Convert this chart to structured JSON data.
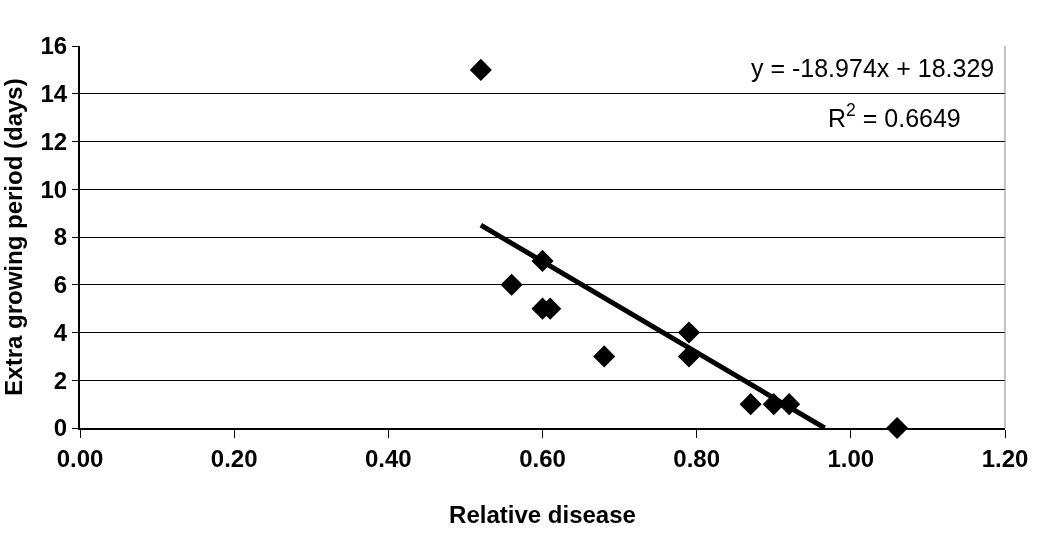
{
  "chart_data": {
    "type": "scatter",
    "xlabel": "Relative disease",
    "ylabel": "Extra growing period (days)",
    "annotations": [
      "y = -18.974x + 18.329",
      "R$^{2}$ = 0.6649"
    ],
    "series": [
      {
        "color": "#000000",
        "marker": "diamond",
        "x": [
          0.52,
          0.56,
          0.6,
          0.6,
          0.61,
          0.68,
          0.79,
          0.79,
          0.87,
          0.9,
          0.92,
          1.06
        ],
        "values": [
          15,
          6,
          7,
          5,
          5,
          3,
          4,
          3,
          1,
          1,
          1,
          0
        ]
      },
      {
        "type": "line",
        "color": "#000000",
        "line_style": "solid",
        "marker": "none",
        "x": [
          0.52,
          0.966
        ],
        "values": [
          8.5,
          0
        ]
      }
    ],
    "xlim": [
      0,
      1.2
    ],
    "xticks": [
      {
        "value": 0,
        "label": "0.00"
      },
      {
        "value": 0.2,
        "label": "0.20"
      },
      {
        "value": 0.4,
        "label": "0.40"
      },
      {
        "value": 0.6,
        "label": "0.60"
      },
      {
        "value": 0.8,
        "label": "0.80"
      },
      {
        "value": 1,
        "label": "1.00"
      },
      {
        "value": 1.2,
        "label": "1.20"
      }
    ],
    "ylim": [
      0,
      16
    ],
    "yticks": [
      0,
      2,
      4,
      6,
      8,
      10,
      12,
      14,
      16
    ],
    "grid": "y",
    "legend": false
  }
}
